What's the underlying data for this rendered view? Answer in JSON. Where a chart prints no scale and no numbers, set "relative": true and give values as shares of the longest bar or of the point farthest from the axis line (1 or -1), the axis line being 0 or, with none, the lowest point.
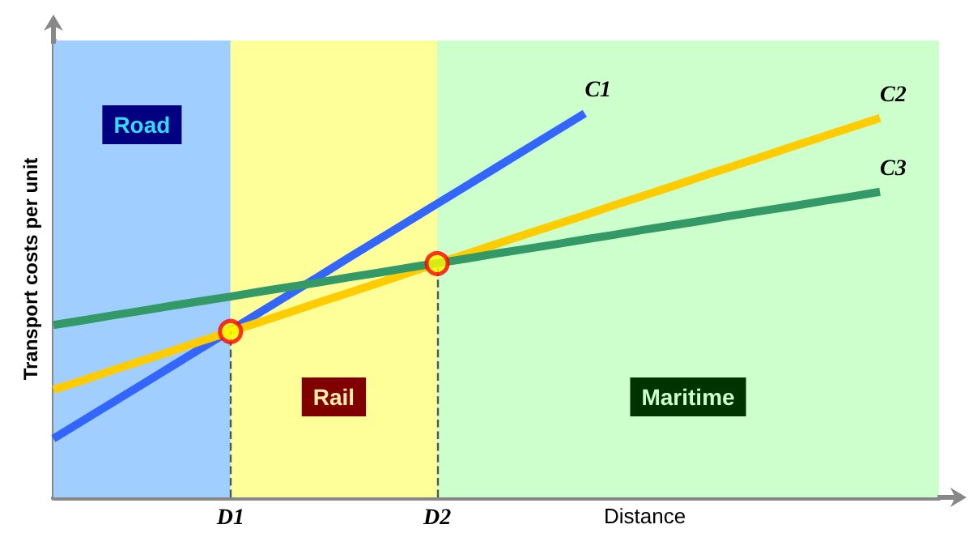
{
  "chart_data": {
    "type": "line",
    "relative": true,
    "xlabel": "Distance",
    "ylabel": "Transport costs per unit",
    "categories": [
      null,
      null,
      null,
      null,
      null,
      null,
      "D1",
      null,
      null,
      null,
      null,
      null,
      null,
      "D2",
      null,
      null,
      null,
      null,
      null,
      null,
      null,
      null,
      null,
      null,
      null,
      null,
      null,
      null,
      null,
      null,
      null
    ],
    "annotations": [
      "Road",
      "Rail",
      "Maritime"
    ],
    "series": [
      {
        "name": "C1",
        "color": "#3366ff",
        "values": [
          0.153,
          0.2,
          0.247,
          0.294,
          0.341,
          0.388,
          0.435,
          0.482,
          0.529,
          0.576,
          0.624,
          0.671,
          0.718,
          0.765,
          0.812,
          0.859,
          0.906,
          0.953,
          1,
          null,
          null,
          null,
          null,
          null,
          null,
          null,
          null,
          null,
          null,
          null,
          null
        ]
      },
      {
        "name": "C2",
        "color": "#ffcc00",
        "values": [
          0.28,
          0.305,
          0.331,
          0.356,
          0.381,
          0.407,
          0.432,
          0.457,
          0.482,
          0.508,
          0.533,
          0.558,
          0.584,
          0.609,
          0.634,
          0.66,
          0.685,
          0.71,
          0.735,
          0.761,
          0.786,
          0.811,
          0.837,
          0.862,
          0.887,
          0.913,
          0.938,
          0.963,
          0.988,
          null,
          null
        ]
      },
      {
        "name": "C3",
        "color": "#339966",
        "values": [
          0.449,
          0.461,
          0.474,
          0.486,
          0.499,
          0.511,
          0.523,
          0.536,
          0.548,
          0.56,
          0.573,
          0.585,
          0.598,
          0.61,
          0.622,
          0.635,
          0.647,
          0.659,
          0.672,
          0.684,
          0.697,
          0.709,
          0.721,
          0.734,
          0.746,
          0.758,
          0.771,
          0.783,
          0.796,
          null,
          null
        ]
      },
      {
        "type": "scatter",
        "color": "#ff0000",
        "marker": "circle",
        "values": [
          null,
          null,
          null,
          null,
          null,
          null,
          0.432,
          null,
          null,
          null,
          null,
          null,
          null,
          0.609,
          null,
          null,
          null,
          null,
          null,
          null,
          null,
          null,
          null,
          null,
          null,
          null,
          null,
          null,
          null,
          null,
          null
        ]
      }
    ],
    "line_style": "solid",
    "grid": false,
    "legend": false
  }
}
